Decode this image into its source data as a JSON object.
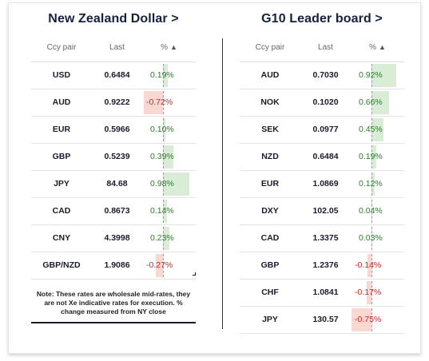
{
  "left": {
    "title": "New Zealand Dollar >",
    "headers": {
      "ccy": "Ccy pair",
      "last": "Last",
      "pct": "%",
      "sort_arrow": "▲"
    },
    "rows": [
      {
        "ccy": "USD",
        "last": "0.6484",
        "pct": "0.19%",
        "change": 0.19
      },
      {
        "ccy": "AUD",
        "last": "0.9222",
        "pct": "-0.72%",
        "change": -0.72
      },
      {
        "ccy": "EUR",
        "last": "0.5966",
        "pct": "0.10%",
        "change": 0.1
      },
      {
        "ccy": "GBP",
        "last": "0.5239",
        "pct": "0.39%",
        "change": 0.39
      },
      {
        "ccy": "JPY",
        "last": "84.68",
        "pct": "0.98%",
        "change": 0.98
      },
      {
        "ccy": "CAD",
        "last": "0.8673",
        "pct": "0.14%",
        "change": 0.14
      },
      {
        "ccy": "CNY",
        "last": "4.3998",
        "pct": "0.23%",
        "change": 0.23
      },
      {
        "ccy": "GBP/NZD",
        "last": "1.9086",
        "pct": "-0.27%",
        "change": -0.27
      }
    ],
    "note": "Note: These rates are wholesale mid-rates, they are not Xe indicative rates for execution. % change measured from NY close"
  },
  "right": {
    "title": "G10 Leader board >",
    "headers": {
      "ccy": "Ccy pair",
      "last": "Last",
      "pct": "%",
      "sort_arrow": "▲"
    },
    "rows": [
      {
        "ccy": "AUD",
        "last": "0.7030",
        "pct": "0.92%",
        "change": 0.92
      },
      {
        "ccy": "NOK",
        "last": "0.1020",
        "pct": "0.66%",
        "change": 0.66
      },
      {
        "ccy": "SEK",
        "last": "0.0977",
        "pct": "0.45%",
        "change": 0.45
      },
      {
        "ccy": "NZD",
        "last": "0.6484",
        "pct": "0.19%",
        "change": 0.19
      },
      {
        "ccy": "EUR",
        "last": "1.0869",
        "pct": "0.12%",
        "change": 0.12
      },
      {
        "ccy": "DXY",
        "last": "102.05",
        "pct": "0.04%",
        "change": 0.04
      },
      {
        "ccy": "CAD",
        "last": "1.3375",
        "pct": "0.03%",
        "change": 0.03
      },
      {
        "ccy": "GBP",
        "last": "1.2376",
        "pct": "-0.14%",
        "change": -0.14
      },
      {
        "ccy": "CHF",
        "last": "1.0841",
        "pct": "-0.17%",
        "change": -0.17
      },
      {
        "ccy": "JPY",
        "last": "130.57",
        "pct": "-0.75%",
        "change": -0.75
      }
    ]
  },
  "colors": {
    "positive_bar": "#d8ecd6",
    "negative_bar": "#f9d8d2",
    "positive_text": "#2d7d2d",
    "negative_text": "#c62828",
    "title": "#16213e"
  }
}
